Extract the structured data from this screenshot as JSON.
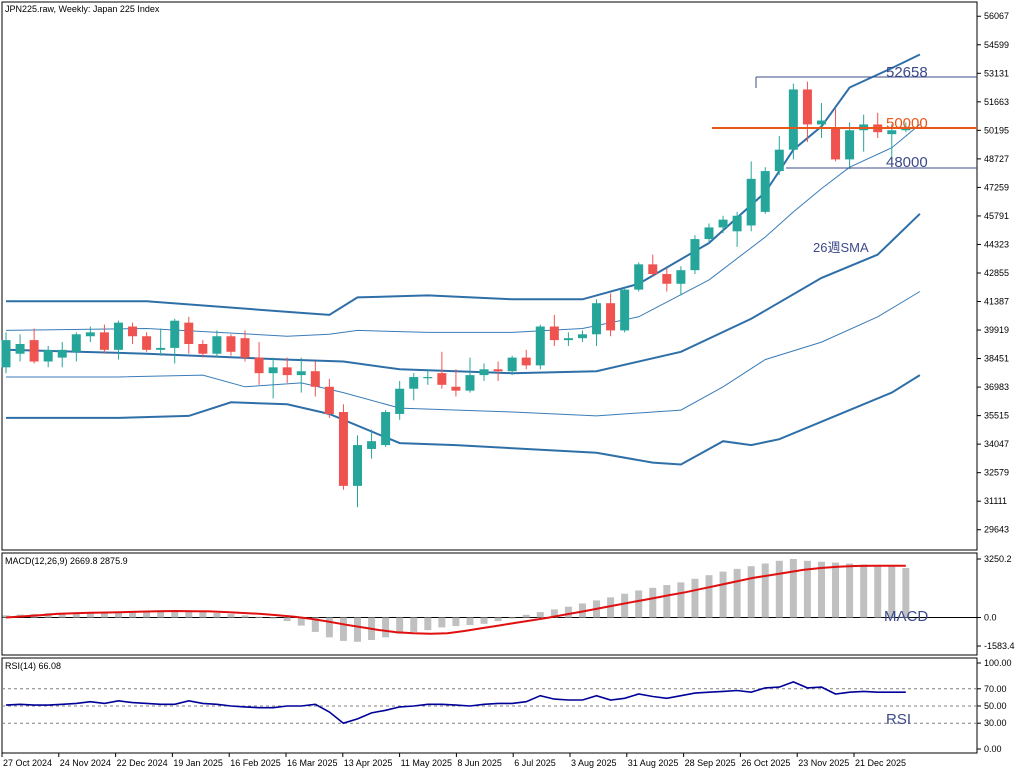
{
  "colors": {
    "bull": "#26a69a",
    "bear": "#ef5350",
    "bb_outer": "#2f6fa8",
    "bb_inner": "#3a7cb8",
    "sma": "#2f6fa8",
    "resistance": "#3d4a8a",
    "support_50000": "#e8561a",
    "macd_hist": "#c0c0c0",
    "macd_signal": "#e01010",
    "rsi": "#000099",
    "frame": "#000000",
    "grid_dashed": "#808080",
    "annot_text": "#3d4a8a"
  },
  "chart_data": [
    {
      "type": "candlestick",
      "title": "JPN225.raw, Weekly:  Japan 225 Index",
      "ylim": [
        28600,
        56800
      ],
      "yticks": [
        "56067",
        "54599",
        "53131",
        "51663",
        "50195",
        "48727",
        "47259",
        "45791",
        "44323",
        "42855",
        "41387",
        "39919",
        "38451",
        "36983",
        "35515",
        "34047",
        "32579",
        "31111",
        "29643"
      ],
      "xticks": [
        "27 Oct 2024",
        "24 Nov 2024",
        "22 Dec 2024",
        "19 Jan 2025",
        "16 Feb 2025",
        "16 Mar 2025",
        "13 Apr 2025",
        "11 May 2025",
        "8 Jun 2025",
        "6 Jul 2025",
        "3 Aug 2025",
        "31 Aug 2025",
        "28 Sep 2025",
        "26 Oct 2025",
        "23 Nov 2025",
        "21 Dec 2025"
      ],
      "candles": [
        {
          "o": 38000,
          "h": 39800,
          "l": 37700,
          "c": 39400
        },
        {
          "o": 38700,
          "h": 39700,
          "l": 38300,
          "c": 39200
        },
        {
          "o": 39400,
          "h": 40000,
          "l": 38200,
          "c": 38300
        },
        {
          "o": 38300,
          "h": 39100,
          "l": 38000,
          "c": 38900
        },
        {
          "o": 38500,
          "h": 39300,
          "l": 38000,
          "c": 38900
        },
        {
          "o": 38800,
          "h": 39800,
          "l": 38300,
          "c": 39700
        },
        {
          "o": 39600,
          "h": 40100,
          "l": 39300,
          "c": 39800
        },
        {
          "o": 39800,
          "h": 40200,
          "l": 38700,
          "c": 38900
        },
        {
          "o": 38900,
          "h": 40400,
          "l": 38400,
          "c": 40300
        },
        {
          "o": 40100,
          "h": 40300,
          "l": 39200,
          "c": 39600
        },
        {
          "o": 39600,
          "h": 39800,
          "l": 38800,
          "c": 38900
        },
        {
          "o": 38900,
          "h": 40000,
          "l": 38600,
          "c": 39000
        },
        {
          "o": 39000,
          "h": 40500,
          "l": 38200,
          "c": 40400
        },
        {
          "o": 40300,
          "h": 40600,
          "l": 38700,
          "c": 39200
        },
        {
          "o": 39200,
          "h": 39400,
          "l": 38500,
          "c": 38700
        },
        {
          "o": 38700,
          "h": 39900,
          "l": 38500,
          "c": 39600
        },
        {
          "o": 39600,
          "h": 39700,
          "l": 38600,
          "c": 38800
        },
        {
          "o": 39500,
          "h": 39900,
          "l": 38300,
          "c": 38500
        },
        {
          "o": 38500,
          "h": 39300,
          "l": 37100,
          "c": 37700
        },
        {
          "o": 37700,
          "h": 38500,
          "l": 36400,
          "c": 38000
        },
        {
          "o": 38000,
          "h": 38500,
          "l": 37200,
          "c": 37600
        },
        {
          "o": 37600,
          "h": 38500,
          "l": 36700,
          "c": 37800
        },
        {
          "o": 37800,
          "h": 38300,
          "l": 36500,
          "c": 37000
        },
        {
          "o": 37000,
          "h": 37400,
          "l": 35400,
          "c": 35600
        },
        {
          "o": 35700,
          "h": 36100,
          "l": 31700,
          "c": 31900
        },
        {
          "o": 31900,
          "h": 34500,
          "l": 30800,
          "c": 34000
        },
        {
          "o": 33800,
          "h": 34800,
          "l": 33300,
          "c": 34200
        },
        {
          "o": 34000,
          "h": 35800,
          "l": 33900,
          "c": 35700
        },
        {
          "o": 35600,
          "h": 37300,
          "l": 35300,
          "c": 36900
        },
        {
          "o": 36900,
          "h": 37700,
          "l": 36300,
          "c": 37500
        },
        {
          "o": 37500,
          "h": 37900,
          "l": 37100,
          "c": 37500
        },
        {
          "o": 37700,
          "h": 38800,
          "l": 36900,
          "c": 37100
        },
        {
          "o": 37000,
          "h": 37900,
          "l": 36500,
          "c": 36800
        },
        {
          "o": 36800,
          "h": 38500,
          "l": 36700,
          "c": 37600
        },
        {
          "o": 37600,
          "h": 38200,
          "l": 37300,
          "c": 37900
        },
        {
          "o": 37900,
          "h": 38300,
          "l": 37300,
          "c": 37800
        },
        {
          "o": 37800,
          "h": 38600,
          "l": 37600,
          "c": 38500
        },
        {
          "o": 38500,
          "h": 38900,
          "l": 37900,
          "c": 38100
        },
        {
          "o": 38100,
          "h": 40200,
          "l": 37900,
          "c": 40100
        },
        {
          "o": 40100,
          "h": 40700,
          "l": 39100,
          "c": 39400
        },
        {
          "o": 39400,
          "h": 39800,
          "l": 39100,
          "c": 39500
        },
        {
          "o": 39500,
          "h": 39900,
          "l": 39300,
          "c": 39700
        },
        {
          "o": 39700,
          "h": 41500,
          "l": 39100,
          "c": 41300
        },
        {
          "o": 41300,
          "h": 41800,
          "l": 39600,
          "c": 39900
        },
        {
          "o": 39900,
          "h": 42100,
          "l": 39800,
          "c": 42000
        },
        {
          "o": 42000,
          "h": 43400,
          "l": 41900,
          "c": 43300
        },
        {
          "o": 43300,
          "h": 43800,
          "l": 42700,
          "c": 42800
        },
        {
          "o": 42800,
          "h": 43100,
          "l": 41900,
          "c": 42300
        },
        {
          "o": 42300,
          "h": 43200,
          "l": 41700,
          "c": 43000
        },
        {
          "o": 43000,
          "h": 44800,
          "l": 42800,
          "c": 44600
        },
        {
          "o": 44600,
          "h": 45400,
          "l": 44400,
          "c": 45200
        },
        {
          "o": 45200,
          "h": 45800,
          "l": 44900,
          "c": 45600
        },
        {
          "o": 45000,
          "h": 46000,
          "l": 44200,
          "c": 45800
        },
        {
          "o": 45300,
          "h": 48600,
          "l": 45000,
          "c": 47700
        },
        {
          "o": 46000,
          "h": 48300,
          "l": 45900,
          "c": 48100
        },
        {
          "o": 48100,
          "h": 49900,
          "l": 47900,
          "c": 49200
        },
        {
          "o": 49200,
          "h": 52600,
          "l": 48700,
          "c": 52300
        },
        {
          "o": 52300,
          "h": 52700,
          "l": 49600,
          "c": 50500
        },
        {
          "o": 50500,
          "h": 51600,
          "l": 49800,
          "c": 50700
        },
        {
          "o": 50300,
          "h": 51300,
          "l": 48600,
          "c": 48700
        },
        {
          "o": 48700,
          "h": 50600,
          "l": 48200,
          "c": 50200
        },
        {
          "o": 50200,
          "h": 51000,
          "l": 49100,
          "c": 50500
        },
        {
          "o": 50500,
          "h": 51100,
          "l": 49800,
          "c": 50100
        },
        {
          "o": 50000,
          "h": 50500,
          "l": 48700,
          "c": 50200
        },
        {
          "o": 50200,
          "h": 50600,
          "l": 50100,
          "c": 50300
        }
      ],
      "bb_upper": [
        [
          0,
          41400
        ],
        [
          10,
          41400
        ],
        [
          21,
          40800
        ],
        [
          23,
          40700
        ],
        [
          25,
          41600
        ],
        [
          30,
          41700
        ],
        [
          36,
          41500
        ],
        [
          41,
          41500
        ],
        [
          45,
          42300
        ],
        [
          50,
          44400
        ],
        [
          54,
          47000
        ],
        [
          56,
          49200
        ],
        [
          58,
          50400
        ],
        [
          60,
          52400
        ],
        [
          63,
          53400
        ],
        [
          65,
          54100
        ]
      ],
      "bb_inner_upper": [
        [
          0,
          39900
        ],
        [
          10,
          40000
        ],
        [
          20,
          39600
        ],
        [
          23,
          39700
        ],
        [
          25,
          39900
        ],
        [
          30,
          39800
        ],
        [
          36,
          39800
        ],
        [
          41,
          40000
        ],
        [
          45,
          40600
        ],
        [
          50,
          42500
        ],
        [
          54,
          44700
        ],
        [
          56,
          46000
        ],
        [
          58,
          47200
        ],
        [
          60,
          48300
        ],
        [
          63,
          49300
        ],
        [
          65,
          50500
        ]
      ],
      "sma26": [
        [
          0,
          38900
        ],
        [
          10,
          38700
        ],
        [
          20,
          38400
        ],
        [
          24,
          38300
        ],
        [
          28,
          37900
        ],
        [
          36,
          37700
        ],
        [
          42,
          37800
        ],
        [
          48,
          38800
        ],
        [
          53,
          40500
        ],
        [
          58,
          42600
        ],
        [
          62,
          43800
        ],
        [
          65,
          45900
        ]
      ],
      "bb_inner_lower": [
        [
          0,
          37500
        ],
        [
          8,
          37500
        ],
        [
          14,
          37600
        ],
        [
          17,
          37000
        ],
        [
          21,
          37200
        ],
        [
          24,
          36700
        ],
        [
          28,
          35900
        ],
        [
          36,
          35700
        ],
        [
          42,
          35500
        ],
        [
          48,
          35800
        ],
        [
          51,
          37000
        ],
        [
          54,
          38400
        ],
        [
          58,
          39300
        ],
        [
          62,
          40600
        ],
        [
          65,
          41900
        ]
      ],
      "bb_lower": [
        [
          0,
          35400
        ],
        [
          8,
          35400
        ],
        [
          13,
          35500
        ],
        [
          16,
          36200
        ],
        [
          20,
          36100
        ],
        [
          23,
          35600
        ],
        [
          28,
          34100
        ],
        [
          32,
          34000
        ],
        [
          42,
          33600
        ],
        [
          46,
          33100
        ],
        [
          48,
          33000
        ],
        [
          51,
          34200
        ],
        [
          53,
          34000
        ],
        [
          55,
          34300
        ],
        [
          60,
          35800
        ],
        [
          63,
          36700
        ],
        [
          65,
          37600
        ]
      ],
      "annotations": {
        "resistance": "52658",
        "round_level": "50000",
        "support": "48000",
        "sma_label": "26週SMA"
      }
    },
    {
      "type": "bar_line",
      "title": "MACD(12,26,9) 2669.8 2875.9",
      "yticks": [
        "3250.2",
        "0.0",
        "-1583.4"
      ],
      "ylim": [
        -1583.4,
        3250.2
      ],
      "histogram": [
        120,
        160,
        200,
        240,
        260,
        280,
        310,
        320,
        330,
        330,
        340,
        340,
        330,
        320,
        300,
        250,
        190,
        120,
        40,
        -60,
        -200,
        -450,
        -800,
        -1100,
        -1300,
        -1350,
        -1250,
        -1100,
        -900,
        -800,
        -700,
        -550,
        -480,
        -420,
        -350,
        -200,
        -50,
        150,
        300,
        450,
        600,
        780,
        950,
        1120,
        1320,
        1500,
        1650,
        1800,
        1950,
        2150,
        2350,
        2550,
        2700,
        2850,
        3000,
        3150,
        3250,
        3150,
        3100,
        3050,
        3000,
        2950,
        2900,
        2850,
        2750
      ],
      "signal": [
        0,
        60,
        130,
        200,
        240,
        260,
        280,
        300,
        330,
        350,
        360,
        350,
        340,
        300,
        250,
        200,
        120,
        40,
        -80,
        -230,
        -400,
        -550,
        -700,
        -820,
        -880,
        -900,
        -870,
        -750,
        -600,
        -450,
        -300,
        -150,
        0,
        170,
        340,
        520,
        700,
        880,
        1050,
        1230,
        1400,
        1600,
        1800,
        2000,
        2200,
        2350,
        2500,
        2650,
        2750,
        2820,
        2860,
        2875,
        2875,
        2870
      ]
    },
    {
      "type": "line",
      "title": "RSI(14) 66.08",
      "yticks": [
        "100.00",
        "70.00",
        "50.00",
        "30.00",
        "0.00"
      ],
      "ylim": [
        0,
        100
      ],
      "levels": [
        70,
        50,
        30
      ],
      "values": [
        51,
        52,
        51,
        51,
        52,
        53,
        55,
        53,
        56,
        54,
        53,
        52,
        52,
        56,
        53,
        52,
        50,
        49,
        48,
        48,
        50,
        50,
        52,
        43,
        30,
        35,
        42,
        45,
        49,
        50,
        52,
        52,
        51,
        50,
        52,
        53,
        53,
        55,
        62,
        58,
        57,
        57,
        62,
        57,
        59,
        64,
        61,
        59,
        62,
        65,
        66,
        67,
        68,
        66,
        71,
        72,
        78,
        71,
        72,
        64,
        66,
        67,
        66,
        66,
        66
      ]
    }
  ],
  "labels": {
    "macd_big": "MACD",
    "rsi_big": "RSI"
  }
}
